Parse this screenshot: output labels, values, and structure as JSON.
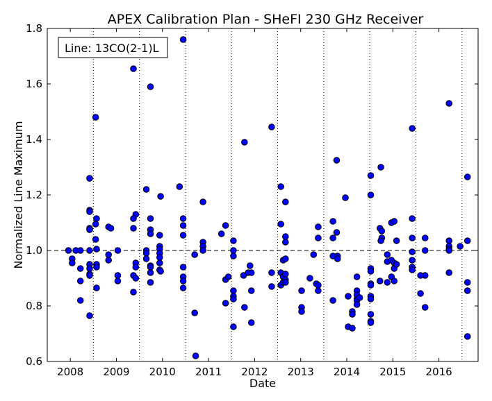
{
  "chart_data": {
    "type": "scatter",
    "title": "APEX Calibration Plan - SHeFI 230 GHz Receiver",
    "xlabel": "Date",
    "ylabel": "Normalized Line Maximum",
    "legend_text": "Line: 13CO(2-1)L",
    "legend_position": "top-left",
    "xlim": [
      2007.5,
      2016.85
    ],
    "ylim": [
      0.6,
      1.8
    ],
    "x_ticks": [
      2008,
      2009,
      2010,
      2011,
      2012,
      2013,
      2014,
      2015,
      2016
    ],
    "x_tick_labels": [
      "2008",
      "2009",
      "2010",
      "2011",
      "2012",
      "2013",
      "2014",
      "2015",
      "2016"
    ],
    "y_ticks": [
      0.6,
      0.8,
      1.0,
      1.2,
      1.4,
      1.6,
      1.8
    ],
    "y_tick_labels": [
      "0.6",
      "0.8",
      "1.0",
      "1.2",
      "1.4",
      "1.6",
      "1.8"
    ],
    "vertical_dotted_lines": [
      2008.5,
      2009.5,
      2010.5,
      2011.5,
      2012.5,
      2013.5,
      2014.5,
      2015.5,
      2016.5
    ],
    "reference_line_y": 1.0,
    "marker_color": "#0000ff",
    "grid": false,
    "points": [
      [
        2007.96,
        1.0
      ],
      [
        2008.04,
        0.97
      ],
      [
        2008.04,
        0.955
      ],
      [
        2008.12,
        1.0
      ],
      [
        2008.22,
        1.0
      ],
      [
        2008.22,
        0.935
      ],
      [
        2008.22,
        0.89
      ],
      [
        2008.22,
        0.82
      ],
      [
        2008.42,
        1.26
      ],
      [
        2008.42,
        1.145
      ],
      [
        2008.42,
        1.14
      ],
      [
        2008.42,
        1.08
      ],
      [
        2008.42,
        1.075
      ],
      [
        2008.42,
        1.0
      ],
      [
        2008.42,
        0.95
      ],
      [
        2008.42,
        0.935
      ],
      [
        2008.42,
        0.915
      ],
      [
        2008.42,
        0.91
      ],
      [
        2008.42,
        0.765
      ],
      [
        2008.55,
        1.48
      ],
      [
        2008.57,
        1.115
      ],
      [
        2008.55,
        1.095
      ],
      [
        2008.55,
        1.04
      ],
      [
        2008.57,
        1.005
      ],
      [
        2008.57,
        0.95
      ],
      [
        2008.57,
        0.94
      ],
      [
        2008.57,
        0.865
      ],
      [
        2008.83,
        1.085
      ],
      [
        2008.88,
        1.08
      ],
      [
        2008.83,
        0.985
      ],
      [
        2008.83,
        0.965
      ],
      [
        2009.03,
        1.0
      ],
      [
        2009.03,
        0.91
      ],
      [
        2009.03,
        0.89
      ],
      [
        2009.37,
        1.655
      ],
      [
        2009.42,
        1.13
      ],
      [
        2009.37,
        1.115
      ],
      [
        2009.37,
        1.08
      ],
      [
        2009.42,
        0.955
      ],
      [
        2009.42,
        0.94
      ],
      [
        2009.37,
        0.91
      ],
      [
        2009.42,
        0.9
      ],
      [
        2009.37,
        0.85
      ],
      [
        2009.65,
        1.22
      ],
      [
        2009.65,
        1.0
      ],
      [
        2009.65,
        0.99
      ],
      [
        2009.65,
        0.97
      ],
      [
        2009.74,
        1.59
      ],
      [
        2009.74,
        1.115
      ],
      [
        2009.74,
        1.075
      ],
      [
        2009.74,
        1.06
      ],
      [
        2009.74,
        0.945
      ],
      [
        2009.74,
        0.94
      ],
      [
        2009.74,
        0.92
      ],
      [
        2009.74,
        0.885
      ],
      [
        2009.96,
        1.195
      ],
      [
        2009.94,
        1.055
      ],
      [
        2009.94,
        1.015
      ],
      [
        2009.94,
        1.005
      ],
      [
        2009.94,
        0.99
      ],
      [
        2009.94,
        0.975
      ],
      [
        2009.94,
        0.955
      ],
      [
        2009.94,
        0.93
      ],
      [
        2009.96,
        0.925
      ],
      [
        2010.37,
        1.23
      ],
      [
        2010.45,
        1.76
      ],
      [
        2010.45,
        1.115
      ],
      [
        2010.45,
        1.09
      ],
      [
        2010.45,
        1.055
      ],
      [
        2010.45,
        0.94
      ],
      [
        2010.45,
        0.905
      ],
      [
        2010.45,
        0.89
      ],
      [
        2010.45,
        0.865
      ],
      [
        2010.7,
        0.985
      ],
      [
        2010.7,
        0.775
      ],
      [
        2010.72,
        0.62
      ],
      [
        2010.88,
        1.175
      ],
      [
        2010.88,
        1.03
      ],
      [
        2010.88,
        1.015
      ],
      [
        2010.88,
        1.0
      ],
      [
        2011.28,
        1.06
      ],
      [
        2011.37,
        1.09
      ],
      [
        2011.37,
        0.895
      ],
      [
        2011.43,
        0.905
      ],
      [
        2011.37,
        0.81
      ],
      [
        2011.54,
        1.035
      ],
      [
        2011.54,
        1.0
      ],
      [
        2011.54,
        0.98
      ],
      [
        2011.54,
        0.855
      ],
      [
        2011.54,
        0.835
      ],
      [
        2011.54,
        0.825
      ],
      [
        2011.54,
        0.725
      ],
      [
        2011.78,
        1.39
      ],
      [
        2011.76,
        0.91
      ],
      [
        2011.86,
        0.92
      ],
      [
        2011.9,
        0.945
      ],
      [
        2011.78,
        0.795
      ],
      [
        2011.93,
        0.92
      ],
      [
        2011.93,
        0.855
      ],
      [
        2011.93,
        0.74
      ],
      [
        2012.37,
        1.445
      ],
      [
        2012.37,
        0.92
      ],
      [
        2012.37,
        0.87
      ],
      [
        2012.57,
        1.23
      ],
      [
        2012.57,
        1.095
      ],
      [
        2012.57,
        0.92
      ],
      [
        2012.57,
        0.875
      ],
      [
        2012.62,
        0.885
      ],
      [
        2012.62,
        0.965
      ],
      [
        2012.62,
        0.905
      ],
      [
        2012.67,
        1.175
      ],
      [
        2012.67,
        1.05
      ],
      [
        2012.67,
        1.03
      ],
      [
        2012.67,
        0.97
      ],
      [
        2012.67,
        0.915
      ],
      [
        2012.67,
        0.895
      ],
      [
        2012.67,
        0.885
      ],
      [
        2013.02,
        0.855
      ],
      [
        2013.02,
        0.795
      ],
      [
        2013.02,
        0.78
      ],
      [
        2013.2,
        0.9
      ],
      [
        2013.28,
        0.985
      ],
      [
        2013.38,
        1.085
      ],
      [
        2013.38,
        1.045
      ],
      [
        2013.34,
        0.88
      ],
      [
        2013.38,
        0.875
      ],
      [
        2013.38,
        0.855
      ],
      [
        2013.7,
        1.105
      ],
      [
        2013.7,
        1.045
      ],
      [
        2013.7,
        0.98
      ],
      [
        2013.7,
        0.82
      ],
      [
        2013.78,
        1.325
      ],
      [
        2013.78,
        1.065
      ],
      [
        2013.8,
        0.98
      ],
      [
        2013.8,
        0.97
      ],
      [
        2013.97,
        1.19
      ],
      [
        2014.03,
        0.835
      ],
      [
        2014.03,
        0.725
      ],
      [
        2014.12,
        0.78
      ],
      [
        2014.12,
        0.77
      ],
      [
        2014.12,
        0.72
      ],
      [
        2014.22,
        0.905
      ],
      [
        2014.22,
        0.855
      ],
      [
        2014.22,
        0.84
      ],
      [
        2014.22,
        0.825
      ],
      [
        2014.22,
        0.82
      ],
      [
        2014.28,
        0.83
      ],
      [
        2014.22,
        0.805
      ],
      [
        2014.52,
        1.27
      ],
      [
        2014.52,
        1.2
      ],
      [
        2014.52,
        0.935
      ],
      [
        2014.52,
        0.925
      ],
      [
        2014.52,
        0.88
      ],
      [
        2014.52,
        0.875
      ],
      [
        2014.52,
        0.835
      ],
      [
        2014.52,
        0.825
      ],
      [
        2014.52,
        0.77
      ],
      [
        2014.52,
        0.745
      ],
      [
        2014.52,
        0.74
      ],
      [
        2014.74,
        1.3
      ],
      [
        2014.72,
        1.08
      ],
      [
        2014.76,
        1.07
      ],
      [
        2014.76,
        1.045
      ],
      [
        2014.74,
        1.035
      ],
      [
        2014.72,
        0.89
      ],
      [
        2014.88,
        0.985
      ],
      [
        2014.88,
        0.96
      ],
      [
        2014.88,
        0.885
      ],
      [
        2014.97,
        1.1
      ],
      [
        2014.97,
        0.965
      ],
      [
        2014.97,
        0.905
      ],
      [
        2015.03,
        1.105
      ],
      [
        2015.03,
        0.955
      ],
      [
        2015.03,
        0.935
      ],
      [
        2015.03,
        0.89
      ],
      [
        2015.08,
        1.035
      ],
      [
        2015.08,
        0.95
      ],
      [
        2015.42,
        1.44
      ],
      [
        2015.42,
        1.115
      ],
      [
        2015.42,
        1.045
      ],
      [
        2015.42,
        0.995
      ],
      [
        2015.42,
        0.965
      ],
      [
        2015.42,
        0.94
      ],
      [
        2015.42,
        0.93
      ],
      [
        2015.6,
        0.91
      ],
      [
        2015.6,
        0.845
      ],
      [
        2015.7,
        1.045
      ],
      [
        2015.7,
        1.0
      ],
      [
        2015.7,
        0.91
      ],
      [
        2015.7,
        0.795
      ],
      [
        2016.22,
        1.53
      ],
      [
        2016.22,
        1.035
      ],
      [
        2016.22,
        1.015
      ],
      [
        2016.22,
        1.005
      ],
      [
        2016.22,
        1.0
      ],
      [
        2016.22,
        0.92
      ],
      [
        2016.46,
        1.015
      ],
      [
        2016.62,
        1.265
      ],
      [
        2016.62,
        1.035
      ],
      [
        2016.62,
        0.885
      ],
      [
        2016.62,
        0.855
      ],
      [
        2016.62,
        0.69
      ]
    ]
  }
}
